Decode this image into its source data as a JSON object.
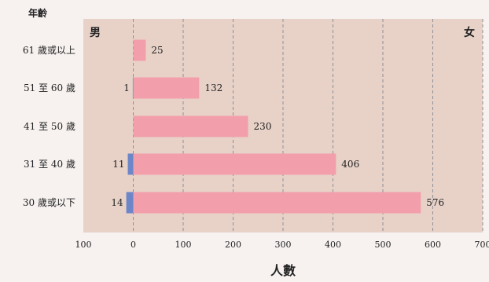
{
  "chart_data": {
    "type": "bar",
    "orientation": "horizontal-diverging",
    "categories": [
      "61 歲或以上",
      "51 至 60 歲",
      "41 至 50 歲",
      "31 至 40 歲",
      "30 歲或以下"
    ],
    "series": [
      {
        "name": "男",
        "values": [
          null,
          1,
          null,
          11,
          14
        ],
        "direction": "left",
        "color": "#6c86c8"
      },
      {
        "name": "女",
        "values": [
          25,
          132,
          230,
          406,
          576
        ],
        "direction": "right",
        "color": "#f29eab"
      }
    ],
    "xlabel": "人數",
    "ylabel": "年齡",
    "xlim": [
      -100,
      700
    ],
    "xticks": [
      -100,
      0,
      100,
      200,
      300,
      400,
      500,
      600,
      700
    ],
    "xtick_labels": [
      "100",
      "0",
      "100",
      "200",
      "300",
      "400",
      "500",
      "600",
      "700"
    ],
    "grid": "vertical-dashed",
    "left_side_label": "男",
    "right_side_label": "女",
    "colors": {
      "page_bg": "#f7f2f0",
      "plot_bg": "#e8d2c8",
      "grid": "#8f8f96",
      "male": "#6c86c8",
      "female": "#f29eab"
    }
  }
}
